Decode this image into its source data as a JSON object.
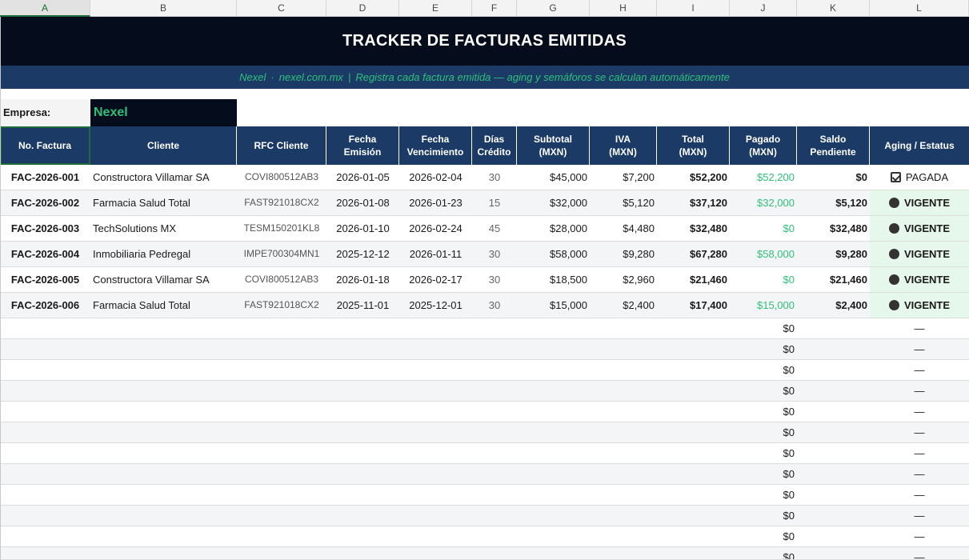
{
  "columns": [
    "A",
    "B",
    "C",
    "D",
    "E",
    "F",
    "G",
    "H",
    "I",
    "J",
    "K",
    "L"
  ],
  "title": "TRACKER DE FACTURAS EMITIDAS",
  "subtitle": {
    "company": "Nexel",
    "sep1": "·",
    "website": "nexel.com.mx",
    "sep2": "|",
    "note": "Registra cada factura emitida — aging y semáforos se calculan automáticamente"
  },
  "empresa": {
    "label": "Empresa:",
    "value": "Nexel"
  },
  "headers": {
    "a": "No. Factura",
    "b": "Cliente",
    "c": "RFC Cliente",
    "d1": "Fecha",
    "d2": "Emisión",
    "e1": "Fecha",
    "e2": "Vencimiento",
    "f1": "Días",
    "f2": "Crédito",
    "g1": "Subtotal",
    "g2": "(MXN)",
    "h1": "IVA",
    "h2": "(MXN)",
    "i1": "Total",
    "i2": "(MXN)",
    "j1": "Pagado",
    "j2": "(MXN)",
    "k1": "Saldo",
    "k2": "Pendiente",
    "l": "Aging / Estatus"
  },
  "rows": [
    {
      "num": "FAC-2026-001",
      "cliente": "Constructora Villamar SA",
      "rfc": "COVI800512AB3",
      "emision": "2026-01-05",
      "venc": "2026-02-04",
      "dias": "30",
      "subtotal": "$45,000",
      "iva": "$7,200",
      "total": "$52,200",
      "pagado": "$52,200",
      "saldo": "$0",
      "status": "PAGADA"
    },
    {
      "num": "FAC-2026-002",
      "cliente": "Farmacia Salud Total",
      "rfc": "FAST921018CX2",
      "emision": "2026-01-08",
      "venc": "2026-01-23",
      "dias": "15",
      "subtotal": "$32,000",
      "iva": "$5,120",
      "total": "$37,120",
      "pagado": "$32,000",
      "saldo": "$5,120",
      "status": "VIGENTE"
    },
    {
      "num": "FAC-2026-003",
      "cliente": "TechSolutions MX",
      "rfc": "TESM150201KL8",
      "emision": "2026-01-10",
      "venc": "2026-02-24",
      "dias": "45",
      "subtotal": "$28,000",
      "iva": "$4,480",
      "total": "$32,480",
      "pagado": "$0",
      "saldo": "$32,480",
      "status": "VIGENTE"
    },
    {
      "num": "FAC-2026-004",
      "cliente": "Inmobiliaria Pedregal",
      "rfc": "IMPE700304MN1",
      "emision": "2025-12-12",
      "venc": "2026-01-11",
      "dias": "30",
      "subtotal": "$58,000",
      "iva": "$9,280",
      "total": "$67,280",
      "pagado": "$58,000",
      "saldo": "$9,280",
      "status": "VIGENTE"
    },
    {
      "num": "FAC-2026-005",
      "cliente": "Constructora Villamar SA",
      "rfc": "COVI800512AB3",
      "emision": "2026-01-18",
      "venc": "2026-02-17",
      "dias": "30",
      "subtotal": "$18,500",
      "iva": "$2,960",
      "total": "$21,460",
      "pagado": "$0",
      "saldo": "$21,460",
      "status": "VIGENTE"
    },
    {
      "num": "FAC-2026-006",
      "cliente": "Farmacia Salud Total",
      "rfc": "FAST921018CX2",
      "emision": "2025-11-01",
      "venc": "2025-12-01",
      "dias": "30",
      "subtotal": "$15,000",
      "iva": "$2,400",
      "total": "$17,400",
      "pagado": "$15,000",
      "saldo": "$2,400",
      "status": "VIGENTE"
    }
  ],
  "empty_rows": [
    {
      "pagado": "$0",
      "status": "—"
    },
    {
      "pagado": "$0",
      "status": "—"
    },
    {
      "pagado": "$0",
      "status": "—"
    },
    {
      "pagado": "$0",
      "status": "—"
    },
    {
      "pagado": "$0",
      "status": "—"
    },
    {
      "pagado": "$0",
      "status": "—"
    },
    {
      "pagado": "$0",
      "status": "—"
    },
    {
      "pagado": "$0",
      "status": "—"
    },
    {
      "pagado": "$0",
      "status": "—"
    },
    {
      "pagado": "$0",
      "status": "—"
    },
    {
      "pagado": "$0",
      "status": "—"
    },
    {
      "pagado": "$0",
      "status": "—"
    }
  ],
  "colors": {
    "title_bg": "#050c1c",
    "header_bg": "#1b3a66",
    "accent_green": "#2fc07a",
    "status_bg": "#e6f7ec"
  },
  "icons": {
    "paid": "checkbox-icon",
    "current": "circle-icon"
  }
}
